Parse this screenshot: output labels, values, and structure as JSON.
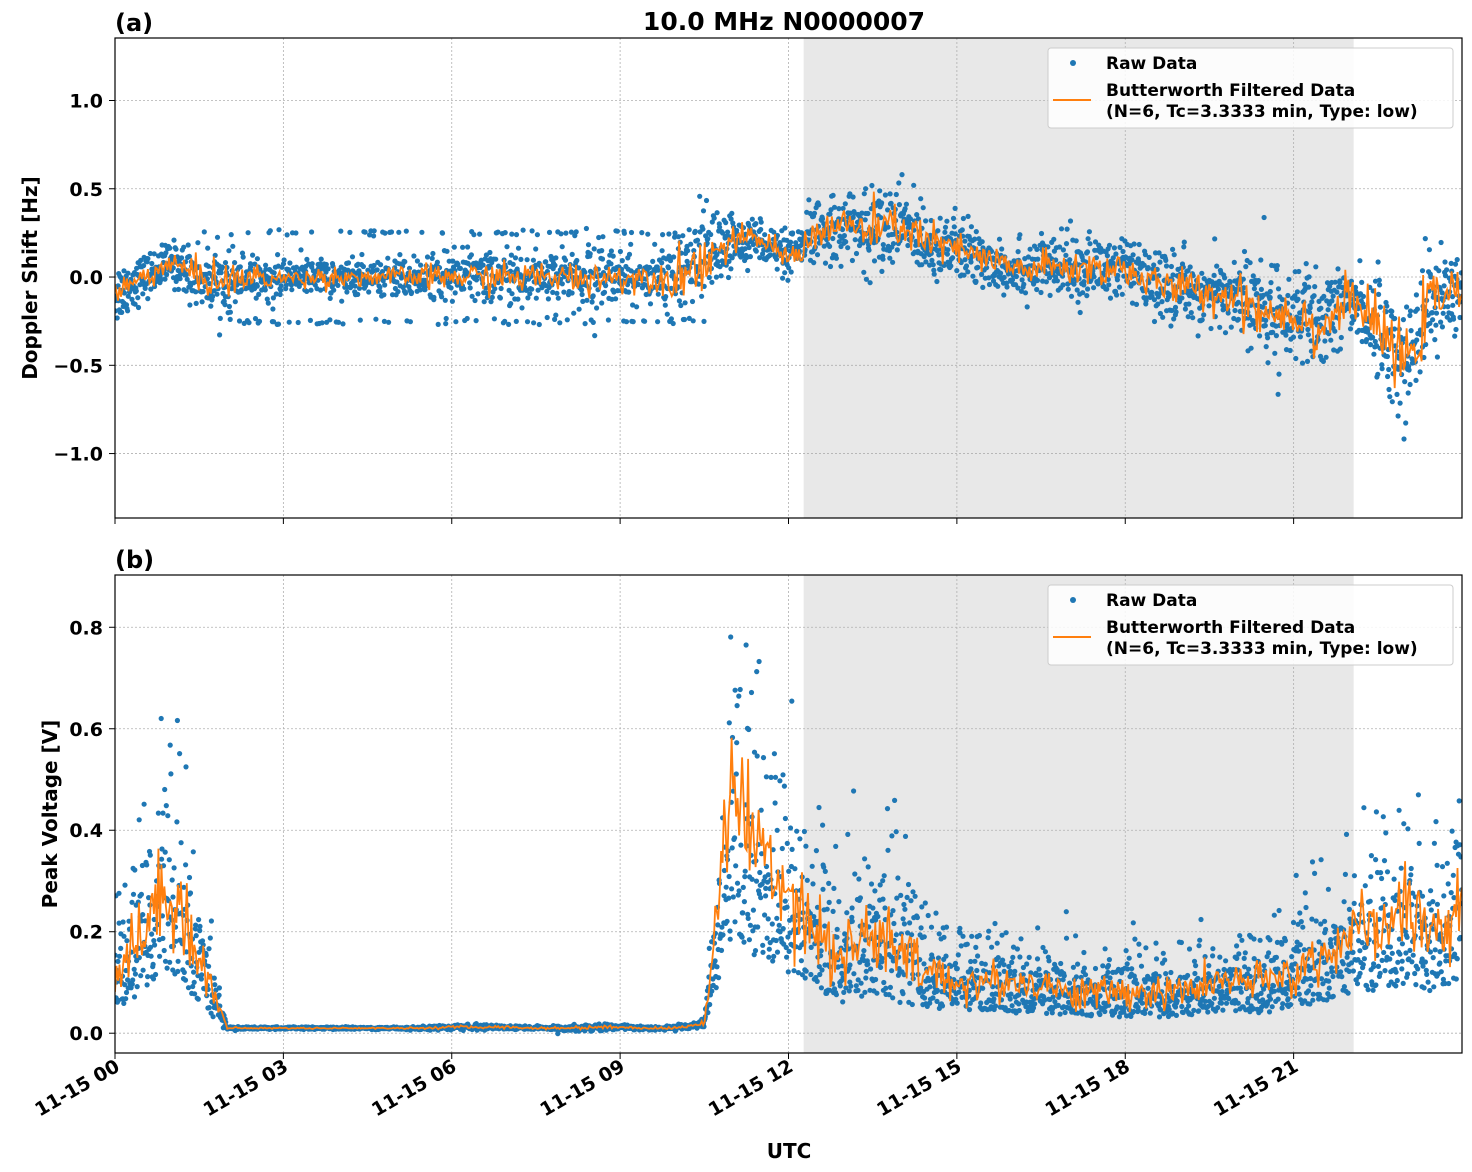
{
  "title": "10.0 MHz N0000007",
  "xlabel": "UTC",
  "x_ticks": [
    "11-15 00",
    "11-15 03",
    "11-15 06",
    "11-15 09",
    "11-15 12",
    "11-15 15",
    "11-15 18",
    "11-15 21"
  ],
  "colors": {
    "raw": "#1f77b4",
    "filtered": "#ff7f0e",
    "shade": "#e8e8e8"
  },
  "legend": {
    "raw": "Raw Data",
    "filtered_line1": "Butterworth Filtered Data",
    "filtered_line2": "(N=6, Tc=3.3333 min, Type: low)",
    "placement": "top-right"
  },
  "chart_data": [
    {
      "type": "scatter+line",
      "panel_label": "(a)",
      "ylabel": "Doppler Shift [Hz]",
      "xlim_hours_utc": [
        0,
        24
      ],
      "ylim": [
        -1.365,
        1.354
      ],
      "y_ticks": [
        "−1.0",
        "−0.5",
        "0.0",
        "0.5",
        "1.0"
      ],
      "y_tick_values": [
        -1.0,
        -0.5,
        0.0,
        0.5,
        1.0
      ],
      "grid": true,
      "shaded_interval_hours_utc": [
        12.27,
        22.07
      ],
      "x_hours_utc": [
        0,
        0.5,
        1,
        1.5,
        2,
        2.5,
        3,
        3.5,
        4,
        4.5,
        5,
        5.5,
        6,
        6.5,
        7,
        7.5,
        8,
        8.5,
        9,
        9.5,
        10,
        10.5,
        11,
        11.5,
        12,
        12.5,
        13,
        13.5,
        14,
        14.5,
        15,
        15.5,
        16,
        16.5,
        17,
        17.5,
        18,
        18.5,
        19,
        19.5,
        20,
        20.5,
        21,
        21.5,
        22,
        22.5,
        23,
        23.5,
        24
      ],
      "filtered": [
        -0.1,
        0.0,
        0.08,
        0.0,
        -0.02,
        0.0,
        -0.01,
        0.0,
        0.0,
        0.0,
        0.0,
        0.0,
        0.0,
        0.0,
        0.0,
        0.0,
        0.0,
        0.0,
        0.0,
        0.0,
        0.0,
        0.1,
        0.2,
        0.22,
        0.1,
        0.25,
        0.3,
        0.25,
        0.3,
        0.2,
        0.15,
        0.1,
        0.05,
        0.05,
        0.05,
        0.05,
        0.05,
        -0.05,
        -0.05,
        -0.1,
        -0.1,
        -0.2,
        -0.2,
        -0.3,
        -0.1,
        -0.3,
        -0.5,
        -0.1,
        -0.1
      ],
      "raw_spread": [
        0.15,
        0.1,
        0.1,
        0.15,
        0.15,
        0.1,
        0.08,
        0.08,
        0.08,
        0.08,
        0.08,
        0.1,
        0.12,
        0.12,
        0.12,
        0.12,
        0.12,
        0.15,
        0.12,
        0.1,
        0.2,
        0.25,
        0.12,
        0.1,
        0.1,
        0.15,
        0.15,
        0.2,
        0.2,
        0.15,
        0.15,
        0.15,
        0.12,
        0.15,
        0.15,
        0.15,
        0.15,
        0.15,
        0.15,
        0.15,
        0.2,
        0.25,
        0.2,
        0.25,
        0.15,
        0.25,
        0.3,
        0.2,
        0.2
      ]
    },
    {
      "type": "scatter+line",
      "panel_label": "(b)",
      "ylabel": "Peak Voltage [V]",
      "xlim_hours_utc": [
        0,
        24
      ],
      "ylim": [
        -0.039,
        0.903
      ],
      "y_ticks": [
        "0.0",
        "0.2",
        "0.4",
        "0.6",
        "0.8"
      ],
      "y_tick_values": [
        0.0,
        0.2,
        0.4,
        0.6,
        0.8
      ],
      "grid": true,
      "shaded_interval_hours_utc": [
        12.27,
        22.07
      ],
      "x_hours_utc": [
        0,
        0.5,
        1,
        1.5,
        2,
        2.5,
        3,
        3.5,
        4,
        4.5,
        5,
        5.5,
        6,
        6.5,
        7,
        7.5,
        8,
        8.5,
        9,
        9.5,
        10,
        10.5,
        11,
        11.5,
        12,
        12.5,
        13,
        13.5,
        14,
        14.5,
        15,
        15.5,
        16,
        16.5,
        17,
        17.5,
        18,
        18.5,
        19,
        19.5,
        20,
        20.5,
        21,
        21.5,
        22,
        22.5,
        23,
        23.5,
        24
      ],
      "filtered": [
        0.12,
        0.2,
        0.3,
        0.15,
        0.01,
        0.01,
        0.01,
        0.01,
        0.01,
        0.01,
        0.01,
        0.01,
        0.012,
        0.012,
        0.012,
        0.01,
        0.01,
        0.012,
        0.012,
        0.01,
        0.01,
        0.02,
        0.5,
        0.35,
        0.3,
        0.2,
        0.15,
        0.2,
        0.15,
        0.12,
        0.1,
        0.1,
        0.1,
        0.1,
        0.08,
        0.08,
        0.08,
        0.08,
        0.08,
        0.1,
        0.1,
        0.1,
        0.12,
        0.15,
        0.2,
        0.2,
        0.25,
        0.2,
        0.25
      ],
      "raw_spread": [
        0.08,
        0.12,
        0.15,
        0.1,
        0.003,
        0.002,
        0.002,
        0.002,
        0.002,
        0.002,
        0.002,
        0.003,
        0.004,
        0.004,
        0.004,
        0.003,
        0.004,
        0.006,
        0.004,
        0.003,
        0.004,
        0.006,
        0.2,
        0.18,
        0.15,
        0.12,
        0.1,
        0.12,
        0.1,
        0.07,
        0.06,
        0.06,
        0.05,
        0.05,
        0.05,
        0.05,
        0.05,
        0.05,
        0.05,
        0.05,
        0.05,
        0.06,
        0.07,
        0.08,
        0.1,
        0.1,
        0.12,
        0.12,
        0.12
      ]
    }
  ]
}
